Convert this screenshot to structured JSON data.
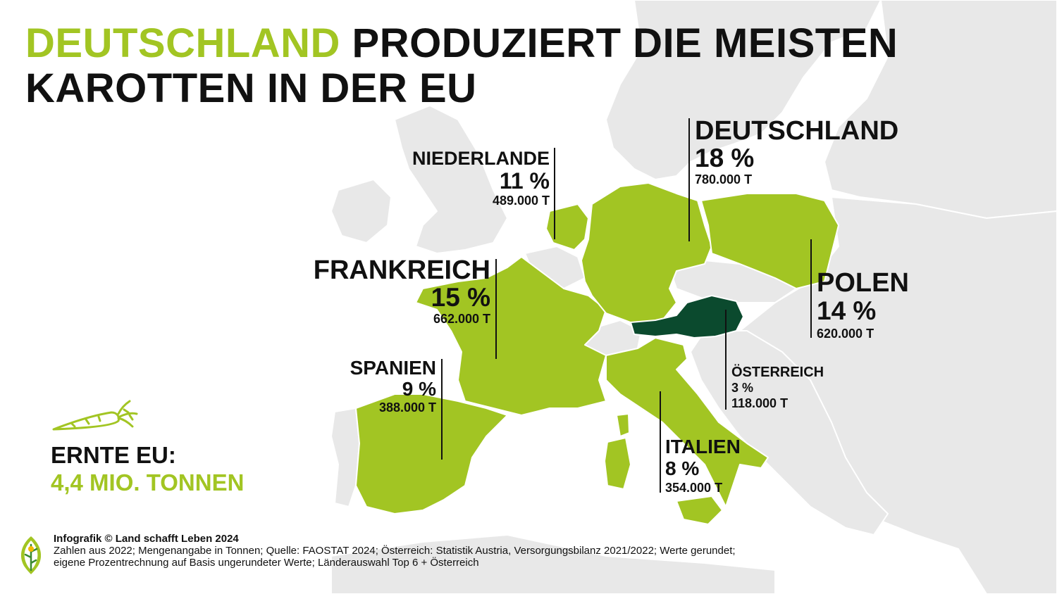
{
  "colors": {
    "accent": "#a2c523",
    "highlight_country": "#0b4a2e",
    "land_grey": "#e8e8e8",
    "border": "#ffffff",
    "text": "#111111"
  },
  "title": {
    "highlight": "DEUTSCHLAND",
    "rest_line1": " PRODUZIERT DIE MEISTEN",
    "line2": "KAROTTEN IN DER EU"
  },
  "countries": {
    "deutschland": {
      "name": "DEUTSCHLAND",
      "share": "18 %",
      "tonnes": "780.000 T",
      "share_value": 18,
      "tonnes_value": 780000
    },
    "niederlande": {
      "name": "NIEDERLANDE",
      "share": "11 %",
      "tonnes": "489.000 T",
      "share_value": 11,
      "tonnes_value": 489000
    },
    "frankreich": {
      "name": "FRANKREICH",
      "share": "15 %",
      "tonnes": "662.000 T",
      "share_value": 15,
      "tonnes_value": 662000
    },
    "polen": {
      "name": "POLEN",
      "share": "14 %",
      "tonnes": "620.000 T",
      "share_value": 14,
      "tonnes_value": 620000
    },
    "spanien": {
      "name": "SPANIEN",
      "share": "9 %",
      "tonnes": "388.000 T",
      "share_value": 9,
      "tonnes_value": 388000
    },
    "oesterreich": {
      "name": "ÖSTERREICH",
      "share": "3 %",
      "tonnes": "118.000 T",
      "share_value": 3,
      "tonnes_value": 118000
    },
    "italien": {
      "name": "ITALIEN",
      "share": "8 %",
      "tonnes": "354.000 T",
      "share_value": 8,
      "tonnes_value": 354000
    }
  },
  "harvest": {
    "label": "ERNTE EU:",
    "value": "4,4 MIO. TONNEN",
    "icon": "carrot-icon"
  },
  "footer": {
    "credit": "Infografik © Land schafft Leben 2024",
    "source_line1": "Zahlen aus 2022; Mengenangabe in Tonnen; Quelle: FAOSTAT 2024; Österreich: Statistik Austria, Versorgungsbilanz 2021/2022; Werte gerundet;",
    "source_line2": "eigene Prozentrechnung auf Basis ungerundeter Werte; Länderauswahl Top 6 + Österreich",
    "logo_icon": "leaf-logo-icon"
  }
}
